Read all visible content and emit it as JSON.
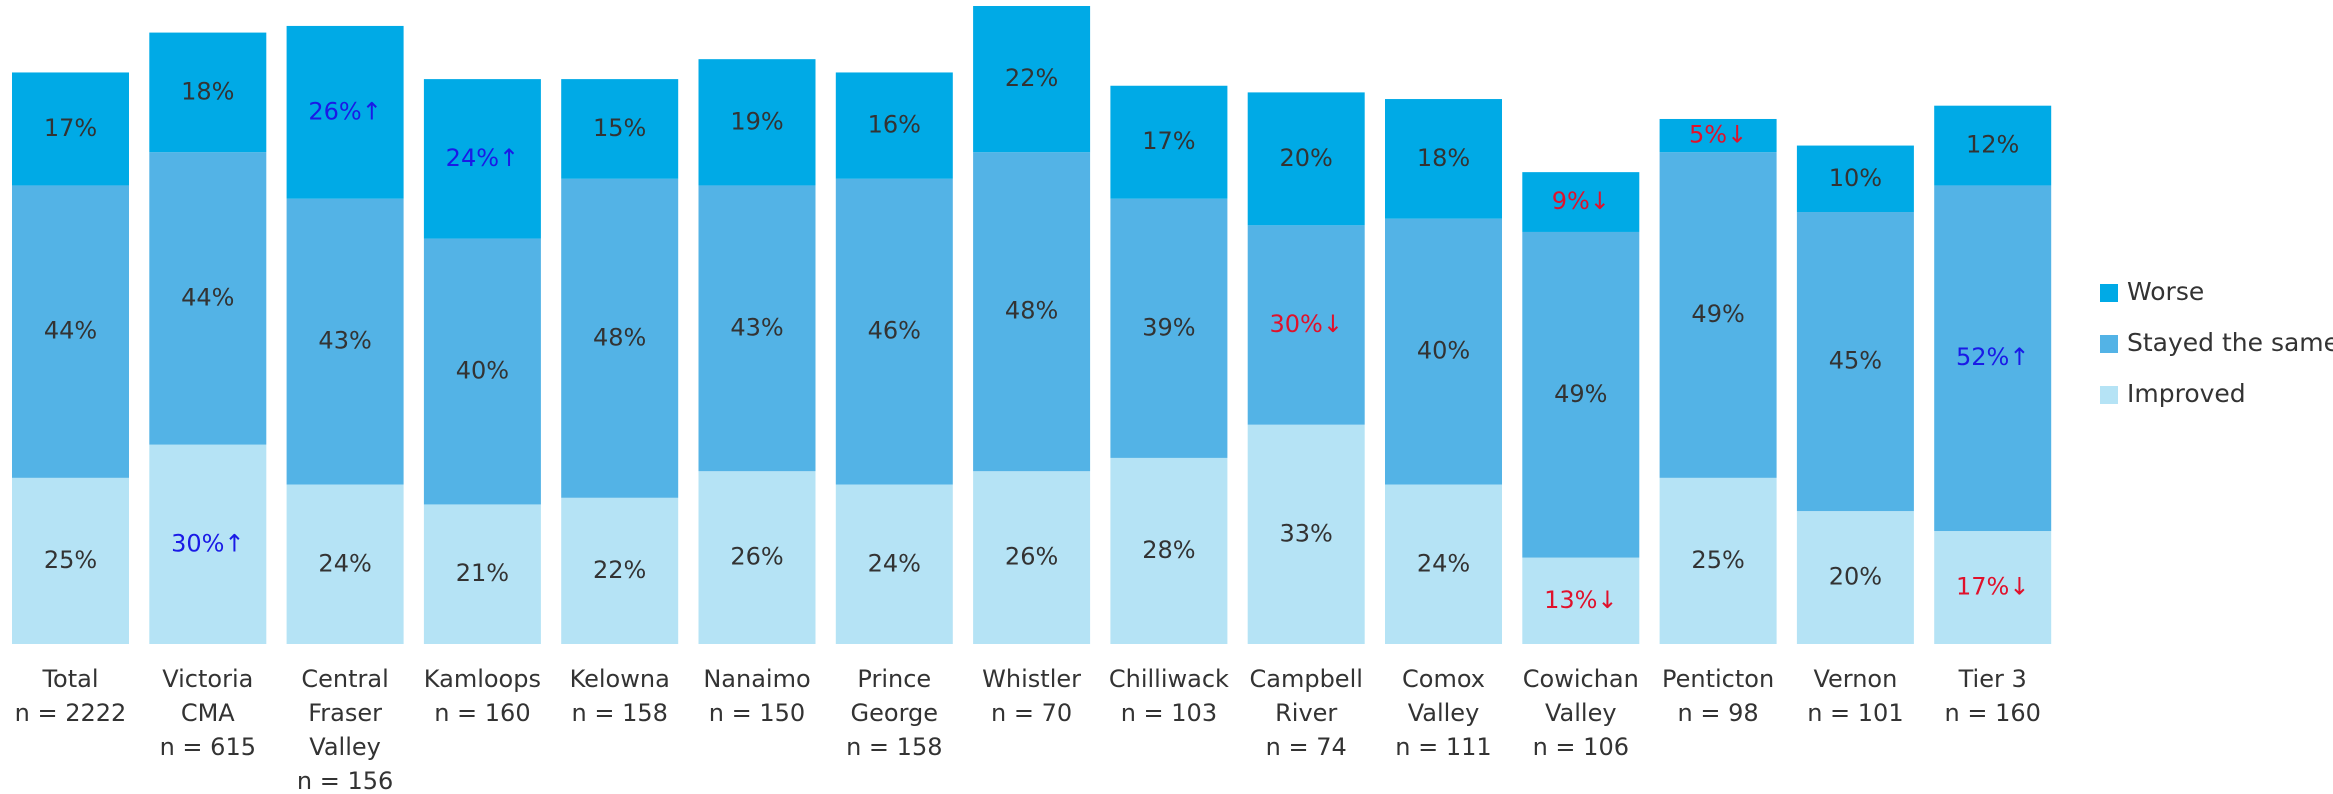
{
  "chart_data": {
    "type": "stacked_bar",
    "categories": [
      [
        "Total",
        "n = 2222"
      ],
      [
        "Victoria",
        "CMA",
        "n = 615"
      ],
      [
        "Central",
        "Fraser",
        "Valley",
        "n = 156"
      ],
      [
        "Kamloops",
        "n = 160"
      ],
      [
        "Kelowna",
        "n = 158"
      ],
      [
        "Nanaimo",
        "n = 150"
      ],
      [
        "Prince",
        "George",
        "n = 158"
      ],
      [
        "Whistler",
        "n = 70"
      ],
      [
        "Chilliwack",
        "n = 103"
      ],
      [
        "Campbell",
        "River",
        "n = 74"
      ],
      [
        "Comox",
        "Valley",
        "n = 111"
      ],
      [
        "Cowichan",
        "Valley",
        "n = 106"
      ],
      [
        "Penticton",
        "n = 98"
      ],
      [
        "Vernon",
        "n = 101"
      ],
      [
        "Tier 3",
        "n = 160"
      ]
    ],
    "series": [
      {
        "name": "Improved",
        "color": "#b5e3f5",
        "values": [
          25,
          30,
          24,
          21,
          22,
          26,
          24,
          26,
          28,
          33,
          24,
          13,
          25,
          20,
          17
        ],
        "value_labels": [
          "25%",
          "30%↑",
          "24%",
          "21%",
          "22%",
          "26%",
          "24%",
          "26%",
          "28%",
          "33%",
          "24%",
          "13%↓",
          "25%",
          "20%",
          "17%↓"
        ],
        "value_label_colors": [
          "#333",
          "#1a1ae6",
          "#333",
          "#333",
          "#333",
          "#333",
          "#333",
          "#333",
          "#333",
          "#333",
          "#333",
          "#e0112b",
          "#333",
          "#333",
          "#e0112b"
        ]
      },
      {
        "name": "Stayed the same",
        "color": "#53b3e6",
        "values": [
          44,
          44,
          43,
          40,
          48,
          43,
          46,
          48,
          39,
          30,
          40,
          49,
          49,
          45,
          52
        ],
        "value_labels": [
          "44%",
          "44%",
          "43%",
          "40%",
          "48%",
          "43%",
          "46%",
          "48%",
          "39%",
          "30%↓",
          "40%",
          "49%",
          "49%",
          "45%",
          "52%↑"
        ],
        "value_label_colors": [
          "#333",
          "#333",
          "#333",
          "#333",
          "#333",
          "#333",
          "#333",
          "#333",
          "#333",
          "#e0112b",
          "#333",
          "#333",
          "#333",
          "#333",
          "#1a1ae6"
        ]
      },
      {
        "name": "Worse",
        "color": "#00aae6",
        "values": [
          17,
          18,
          26,
          24,
          15,
          19,
          16,
          22,
          17,
          20,
          18,
          9,
          5,
          10,
          12
        ],
        "value_labels": [
          "17%",
          "18%",
          "26%↑",
          "24%↑",
          "15%",
          "19%",
          "16%",
          "22%",
          "17%",
          "20%",
          "18%",
          "9%↓",
          "5%↓",
          "10%",
          "12%"
        ],
        "value_label_colors": [
          "#333",
          "#333",
          "#1a1ae6",
          "#1a1ae6",
          "#333",
          "#333",
          "#333",
          "#333",
          "#333",
          "#333",
          "#333",
          "#e0112b",
          "#e0112b",
          "#333",
          "#333"
        ]
      }
    ],
    "legend": "right"
  }
}
